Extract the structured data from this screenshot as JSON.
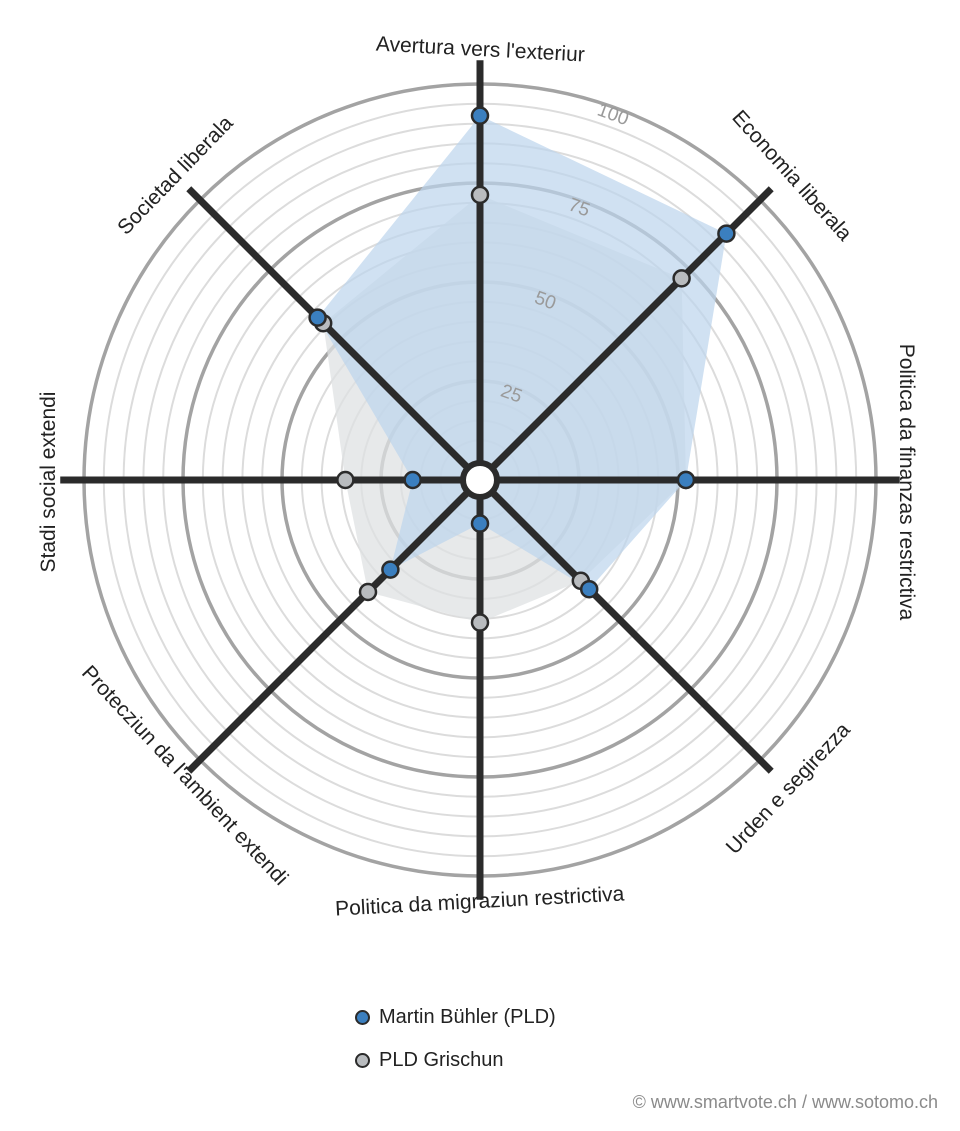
{
  "chart_data": {
    "type": "radar",
    "axes": [
      "Avertura vers l'exteriur",
      "Economia liberala",
      "Politica da finanzas restrictiva",
      "Urden e segirezza",
      "Politica da migraziun restrictiva",
      "Protecziun da l'ambient extendi",
      "Stadi social extendi",
      "Societad liberala"
    ],
    "rlim": [
      0,
      100
    ],
    "ticks": [
      25,
      50,
      75,
      100
    ],
    "tick_labels": [
      "25",
      "50",
      "75",
      "100"
    ],
    "series": [
      {
        "name": "Martin Bühler (PLD)",
        "color": "#3b7fbf",
        "fill": "#bcd4ec",
        "values": [
          92,
          88,
          52,
          39,
          11,
          32,
          17,
          58
        ]
      },
      {
        "name": "PLD Grischun",
        "color": "#b9bcbf",
        "fill": "#dfe1e3",
        "values": [
          72,
          72,
          52,
          36,
          36,
          40,
          34,
          56
        ]
      }
    ]
  },
  "credit": "© www.smartvote.ch / www.sotomo.ch"
}
